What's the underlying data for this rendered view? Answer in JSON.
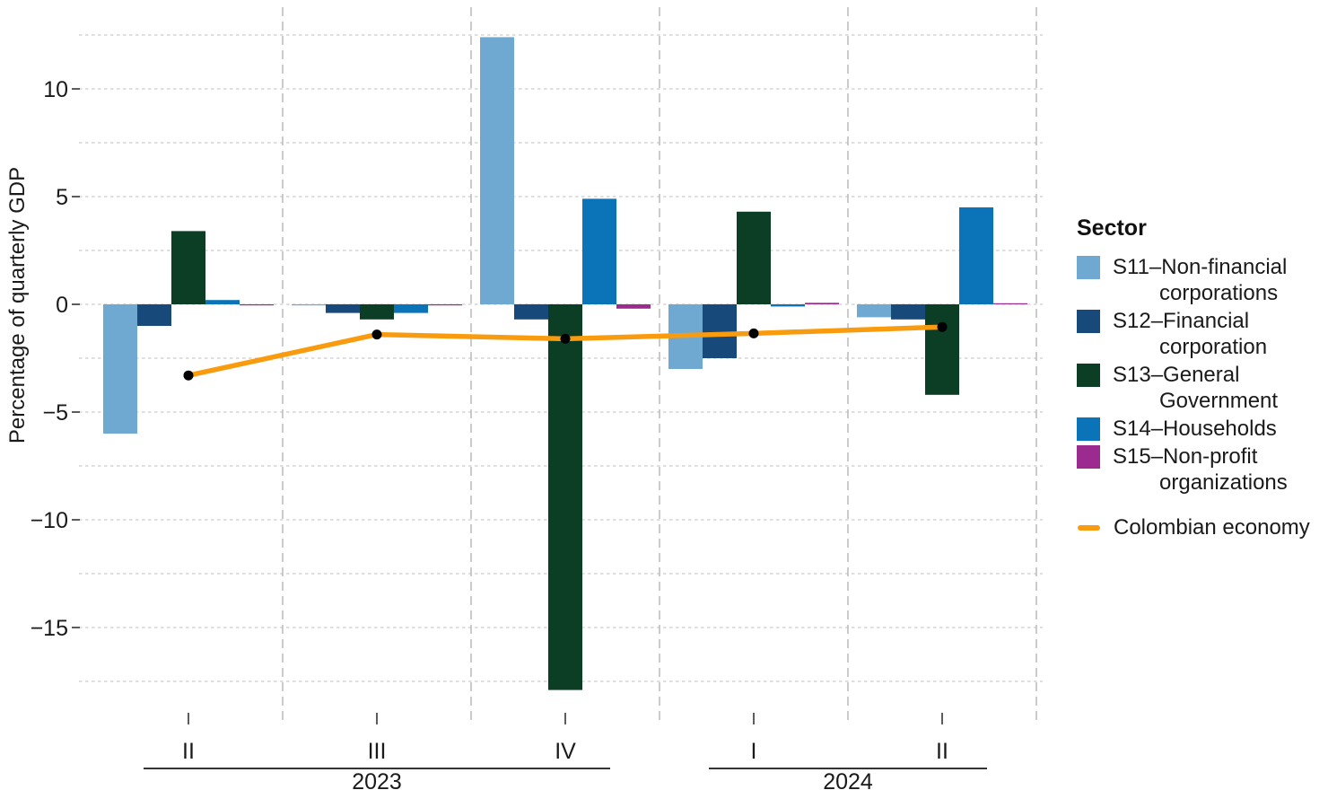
{
  "legend": {
    "title": "Sector",
    "items": [
      {
        "id": "s11",
        "lines": [
          "S11–Non-financial",
          "corporations"
        ],
        "color": "#6fa8d1"
      },
      {
        "id": "s12",
        "lines": [
          "S12–Financial",
          "corporation"
        ],
        "color": "#17497b"
      },
      {
        "id": "s13",
        "lines": [
          "S13–General",
          "Government"
        ],
        "color": "#0c3d25"
      },
      {
        "id": "s14",
        "lines": [
          "S14–Households"
        ],
        "color": "#0b73b8"
      },
      {
        "id": "s15",
        "lines": [
          "S15–Non-profit",
          "organizations"
        ],
        "color": "#9c2b90"
      }
    ],
    "line_item": {
      "label": "Colombian economy",
      "color": "#f99b0f"
    }
  },
  "chart_data": {
    "type": "bar",
    "title": "",
    "ylabel": "Percentage of quarterly GDP",
    "xlabel": "",
    "categories": [
      "II",
      "III",
      "IV",
      "I",
      "II"
    ],
    "year_groups": [
      {
        "label": "2023",
        "from": 0,
        "to": 2
      },
      {
        "label": "2024",
        "from": 3,
        "to": 4
      }
    ],
    "series": [
      {
        "id": "s11",
        "name": "S11–Non-financial corporations",
        "color": "#6fa8d1",
        "values": [
          -6.0,
          -0.05,
          12.4,
          -3.0,
          -0.6
        ]
      },
      {
        "id": "s12",
        "name": "S12–Financial corporation",
        "color": "#17497b",
        "values": [
          -1.0,
          -0.4,
          -0.7,
          -2.5,
          -0.7
        ]
      },
      {
        "id": "s13",
        "name": "S13–General Government",
        "color": "#0c3d25",
        "values": [
          3.4,
          -0.7,
          -17.9,
          4.3,
          -4.2
        ]
      },
      {
        "id": "s14",
        "name": "S14–Households",
        "color": "#0b73b8",
        "values": [
          0.2,
          -0.4,
          4.9,
          -0.1,
          4.5
        ]
      },
      {
        "id": "s15",
        "name": "S15–Non-profit organizations",
        "color": "#9c2b90",
        "values": [
          -0.05,
          -0.05,
          -0.2,
          0.07,
          0.05
        ]
      }
    ],
    "line_series": {
      "name": "Colombian economy",
      "color": "#f99b0f",
      "values": [
        -3.3,
        -1.4,
        -1.6,
        -1.35,
        -1.05
      ]
    },
    "y_ticks": [
      {
        "label": "10",
        "value": 10
      },
      {
        "label": "5",
        "value": 5
      },
      {
        "label": "0",
        "value": 0
      },
      {
        "label": "−5",
        "value": -5
      },
      {
        "label": "−10",
        "value": -10
      },
      {
        "label": "−15",
        "value": -15
      }
    ],
    "y_grid_step": 2.5,
    "y_grid_range": [
      -17.5,
      12.5
    ],
    "ylim": [
      -18.8,
      13.8
    ],
    "grid": true,
    "legend_position": "right",
    "colors": {
      "grid_h": "#cccccc",
      "grid_v": "#b5b5b5",
      "dot": "#000000",
      "axis_text": "#1a1a1a",
      "tick": "#333333"
    }
  }
}
